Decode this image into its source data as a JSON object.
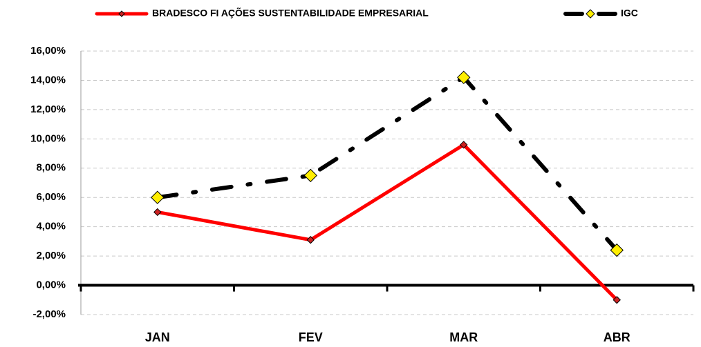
{
  "chart_data": {
    "type": "line",
    "categories": [
      "JAN",
      "FEV",
      "MAR",
      "ABR"
    ],
    "series": [
      {
        "name": "BRADESCO FI AÇÕES SUSTENTABILIDADE EMPRESARIAL",
        "color": "#ff0000",
        "values": [
          5.0,
          3.1,
          9.6,
          -1.0
        ]
      },
      {
        "name": "IGC",
        "color": "#000000",
        "values": [
          6.0,
          7.5,
          14.2,
          2.4
        ]
      }
    ],
    "ylim": [
      -2,
      16
    ],
    "yticks": [
      {
        "value": -2,
        "label": "-2,00%"
      },
      {
        "value": 0,
        "label": "0,00%"
      },
      {
        "value": 2,
        "label": "2,00%"
      },
      {
        "value": 4,
        "label": "4,00%"
      },
      {
        "value": 6,
        "label": "6,00%"
      },
      {
        "value": 8,
        "label": "8,00%"
      },
      {
        "value": 10,
        "label": "10,00%"
      },
      {
        "value": 12,
        "label": "12,00%"
      },
      {
        "value": 14,
        "label": "14,00%"
      },
      {
        "value": 16,
        "label": "16,00%"
      }
    ],
    "grid": true,
    "legend": "top"
  }
}
